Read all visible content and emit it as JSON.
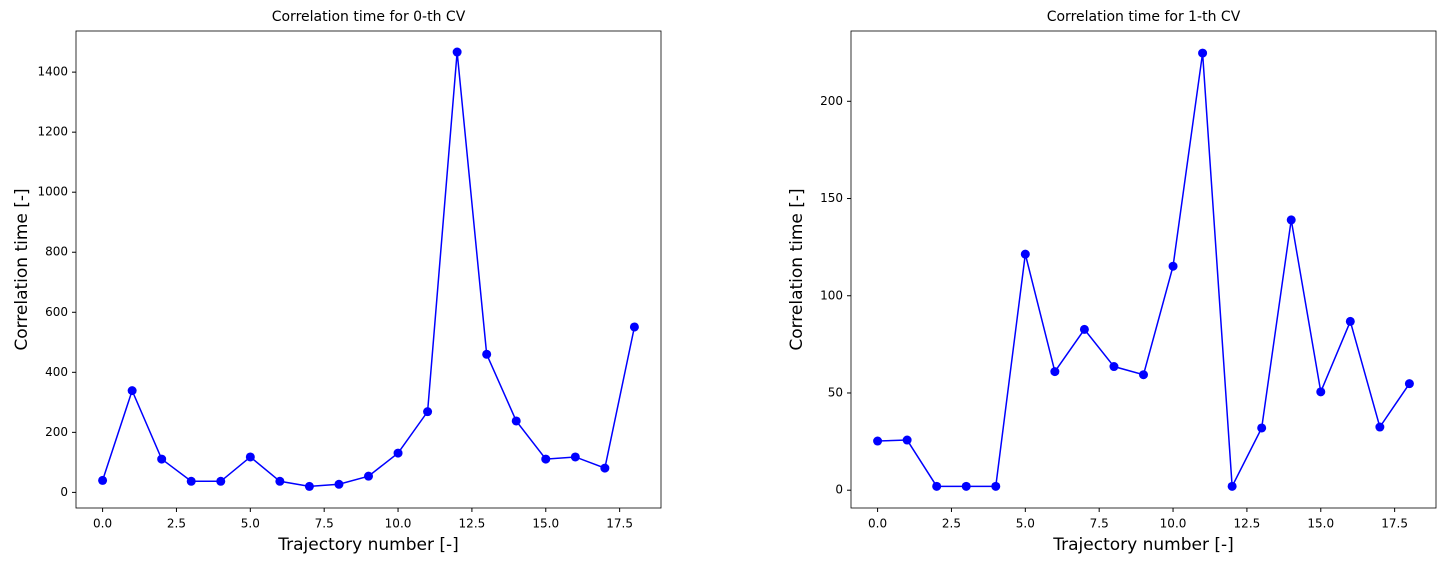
{
  "chart_data": [
    {
      "type": "line",
      "title": "Correlation time for 0-th CV",
      "xlabel": "Trajectory number [-]",
      "ylabel": "Correlation time [-]",
      "x": [
        0,
        1,
        2,
        3,
        4,
        5,
        6,
        7,
        8,
        9,
        10,
        11,
        12,
        13,
        14,
        15,
        16,
        17,
        18
      ],
      "values": [
        40,
        339,
        111,
        37,
        37,
        118,
        37,
        20,
        27,
        54,
        131,
        269,
        1467,
        460,
        238,
        111,
        118,
        81,
        551
      ],
      "color": "#0000ff",
      "xlim": [
        -0.9,
        18.9
      ],
      "ylim": [
        -52,
        1537
      ],
      "xticks": [
        {
          "value": 0,
          "label": "0.0"
        },
        2.5,
        {
          "value": 5,
          "label": "5.0"
        },
        7.5,
        {
          "value": 10,
          "label": "10.0"
        },
        12.5,
        {
          "value": 15,
          "label": "15.0"
        },
        17.5
      ],
      "yticks": [
        0,
        200,
        400,
        600,
        800,
        1000,
        1200,
        1400
      ]
    },
    {
      "type": "line",
      "title": "Correlation time for 1-th CV",
      "xlabel": "Trajectory number [-]",
      "ylabel": "Correlation time [-]",
      "x": [
        0,
        1,
        2,
        3,
        4,
        5,
        6,
        7,
        8,
        9,
        10,
        11,
        12,
        13,
        14,
        15,
        16,
        17,
        18
      ],
      "values": [
        25.3,
        25.8,
        2,
        2,
        2,
        121.4,
        61,
        82.7,
        63.6,
        59.4,
        115.2,
        224.8,
        2,
        32,
        139,
        50.6,
        86.8,
        32.5,
        54.8
      ],
      "color": "#0000ff",
      "xlim": [
        -0.9,
        18.9
      ],
      "ylim": [
        -9.15,
        236.15
      ],
      "xticks": [
        {
          "value": 0,
          "label": "0.0"
        },
        2.5,
        {
          "value": 5,
          "label": "5.0"
        },
        7.5,
        {
          "value": 10,
          "label": "10.0"
        },
        12.5,
        {
          "value": 15,
          "label": "15.0"
        },
        17.5
      ],
      "yticks": [
        0,
        50,
        100,
        150,
        200
      ]
    }
  ]
}
